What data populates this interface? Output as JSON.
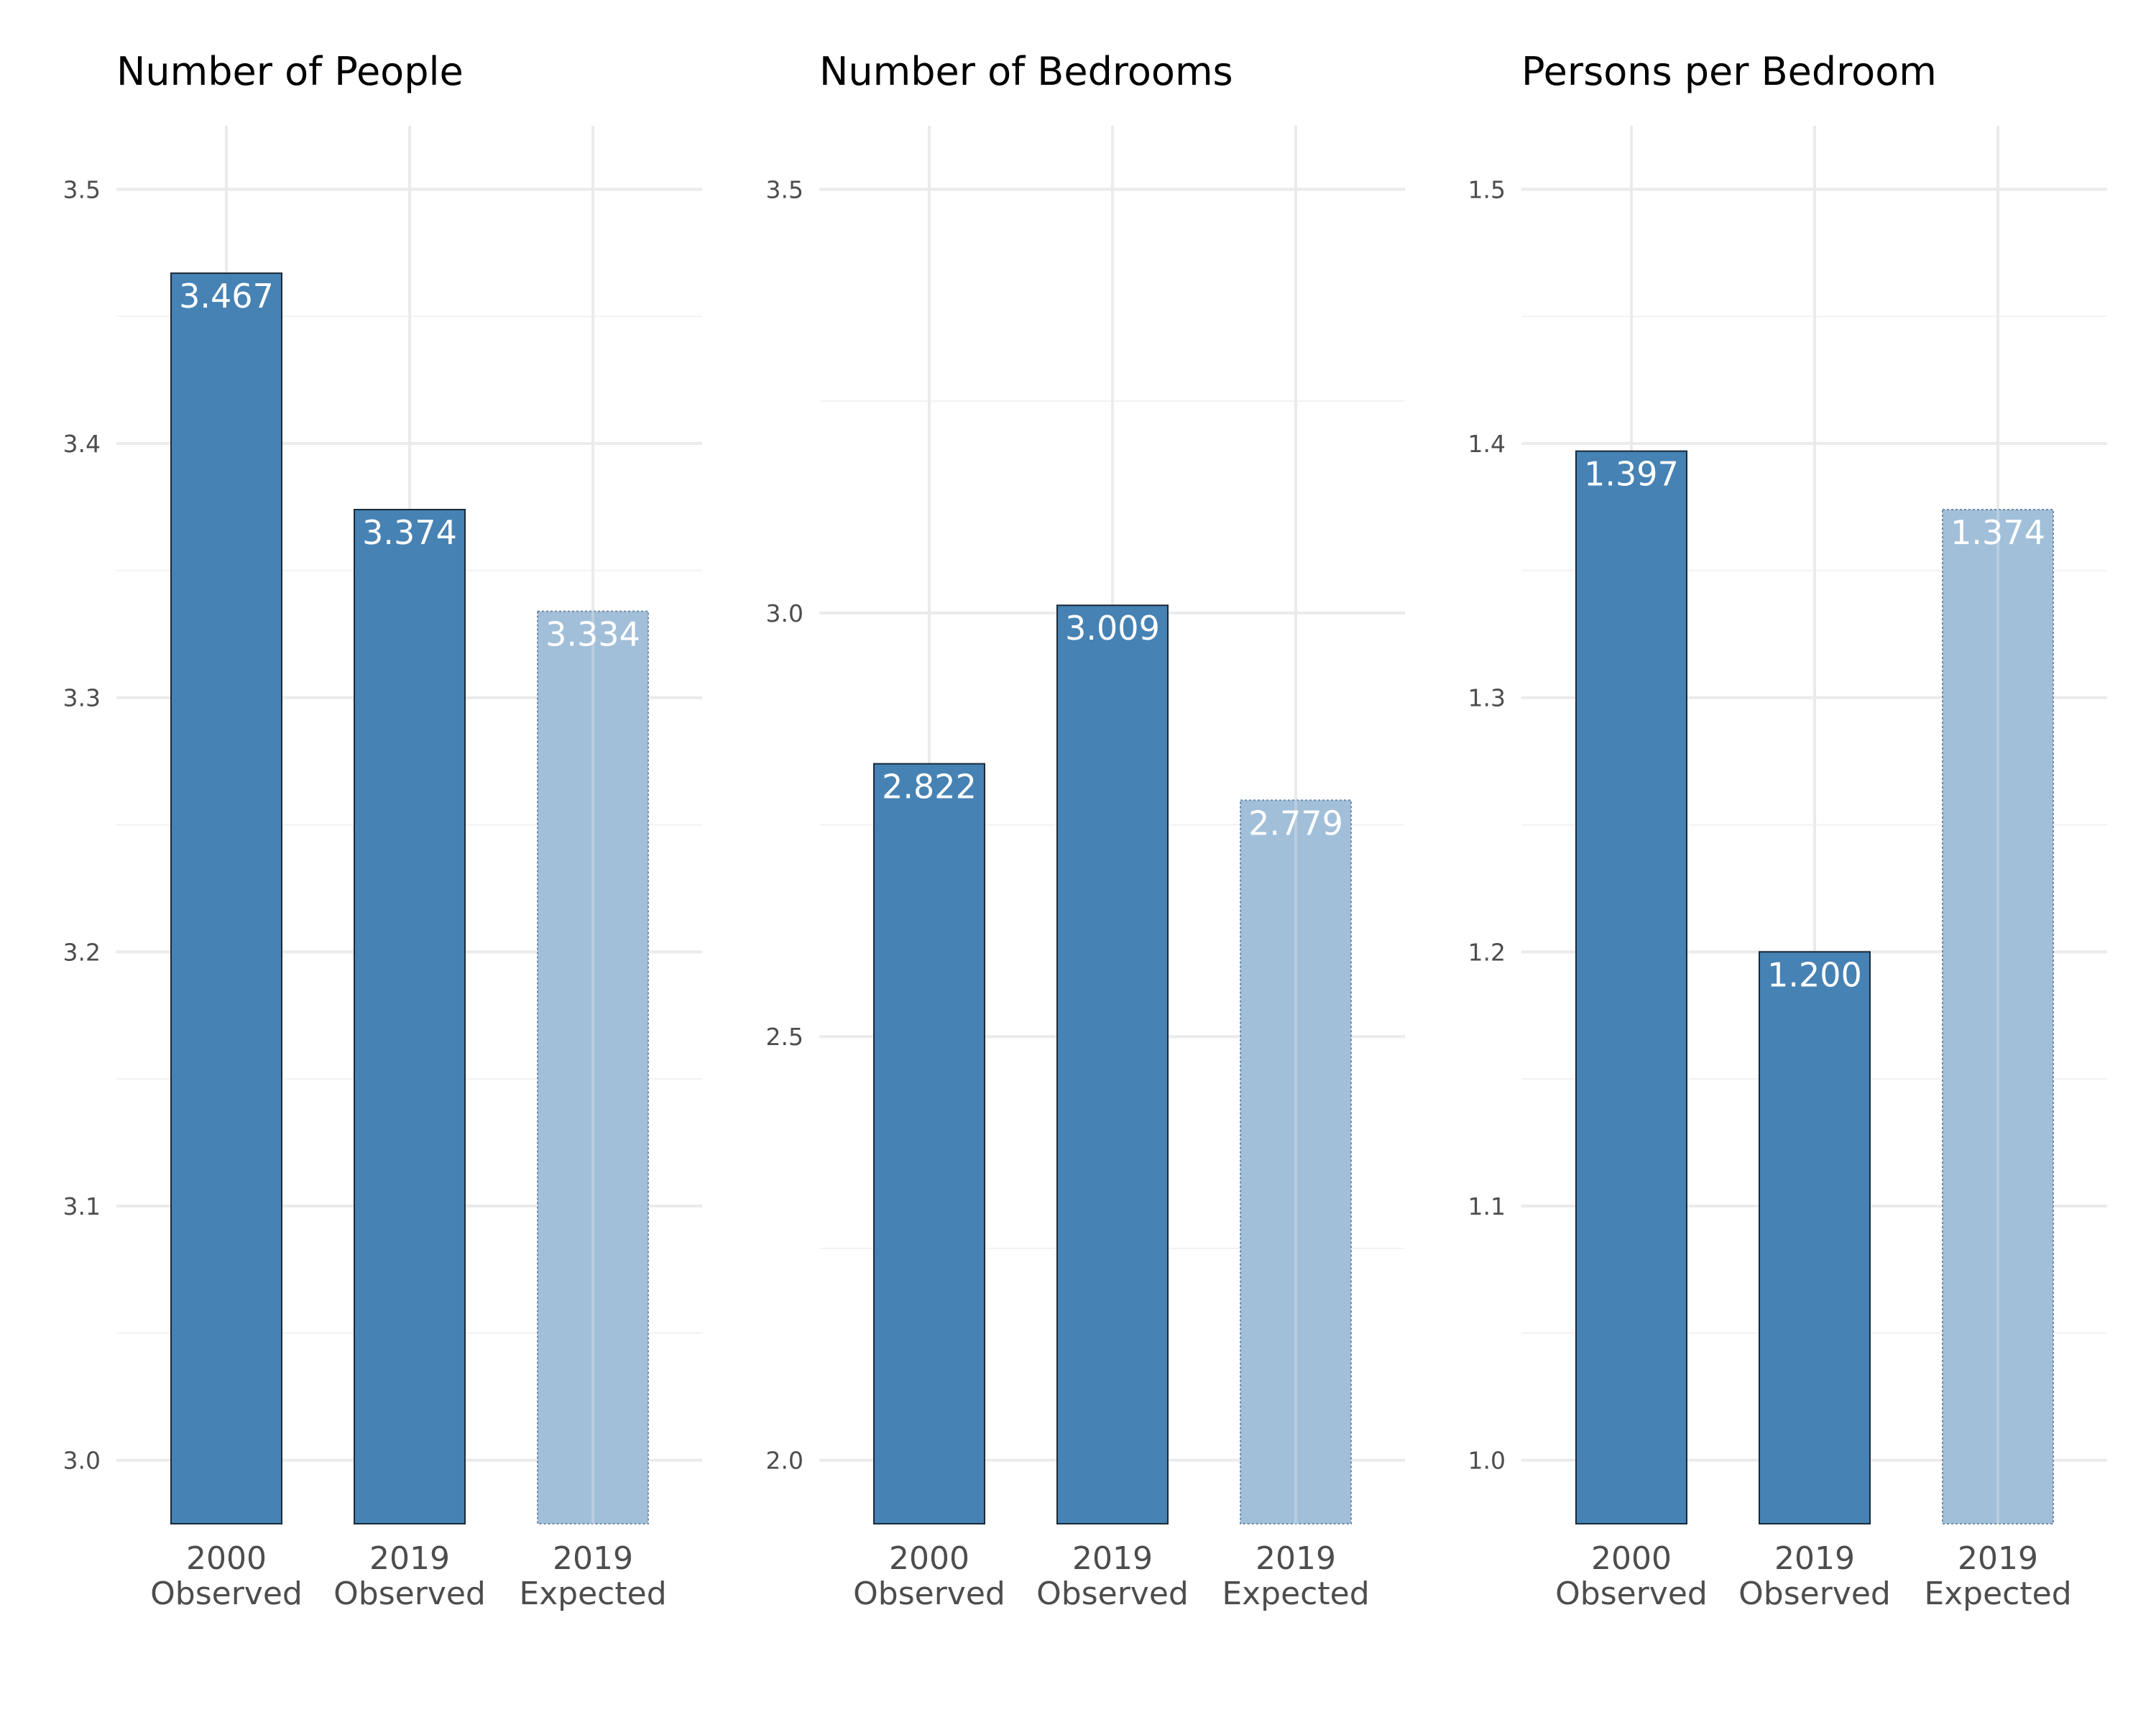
{
  "chart_data": [
    {
      "type": "bar",
      "title": "Number of People",
      "categories": [
        "2000\nObserved",
        "2019\nObserved",
        "2019\nExpected"
      ],
      "values": [
        3.467,
        3.374,
        3.334
      ],
      "value_labels": [
        "3.467",
        "3.374",
        "3.334"
      ],
      "bar_kind": [
        "observed",
        "observed",
        "expected"
      ],
      "yticks": [
        3.0,
        3.1,
        3.2,
        3.3,
        3.4,
        3.5
      ],
      "ytick_labels": [
        "3.0",
        "3.1",
        "3.2",
        "3.3",
        "3.4",
        "3.5"
      ],
      "ylim": [
        2.975,
        3.525
      ],
      "xlabel": "",
      "ylabel": "",
      "grid": true
    },
    {
      "type": "bar",
      "title": "Number of Bedrooms",
      "categories": [
        "2000\nObserved",
        "2019\nObserved",
        "2019\nExpected"
      ],
      "values": [
        2.822,
        3.009,
        2.779
      ],
      "value_labels": [
        "2.822",
        "3.009",
        "2.779"
      ],
      "bar_kind": [
        "observed",
        "observed",
        "expected"
      ],
      "yticks": [
        2.0,
        2.5,
        3.0,
        3.5
      ],
      "ytick_labels": [
        "2.0",
        "2.5",
        "3.0",
        "3.5"
      ],
      "ylim": [
        1.925,
        3.575
      ],
      "xlabel": "",
      "ylabel": "",
      "grid": true
    },
    {
      "type": "bar",
      "title": "Persons per Bedroom",
      "categories": [
        "2000\nObserved",
        "2019\nObserved",
        "2019\nExpected"
      ],
      "values": [
        1.397,
        1.2,
        1.374
      ],
      "value_labels": [
        "1.397",
        "1.200",
        "1.374"
      ],
      "bar_kind": [
        "observed",
        "observed",
        "expected"
      ],
      "yticks": [
        1.0,
        1.1,
        1.2,
        1.3,
        1.4,
        1.5
      ],
      "ytick_labels": [
        "1.0",
        "1.1",
        "1.2",
        "1.3",
        "1.4",
        "1.5"
      ],
      "ylim": [
        0.975,
        1.525
      ],
      "xlabel": "",
      "ylabel": "",
      "grid": true
    }
  ],
  "colors": {
    "observed_fill": "#4682b4",
    "expected_fill": "#a2bfd9",
    "bar_outline": "#1a2a38",
    "value_label": "#ffffff",
    "grid": "#ebebeb",
    "tick_text": "#4d4d4d"
  }
}
